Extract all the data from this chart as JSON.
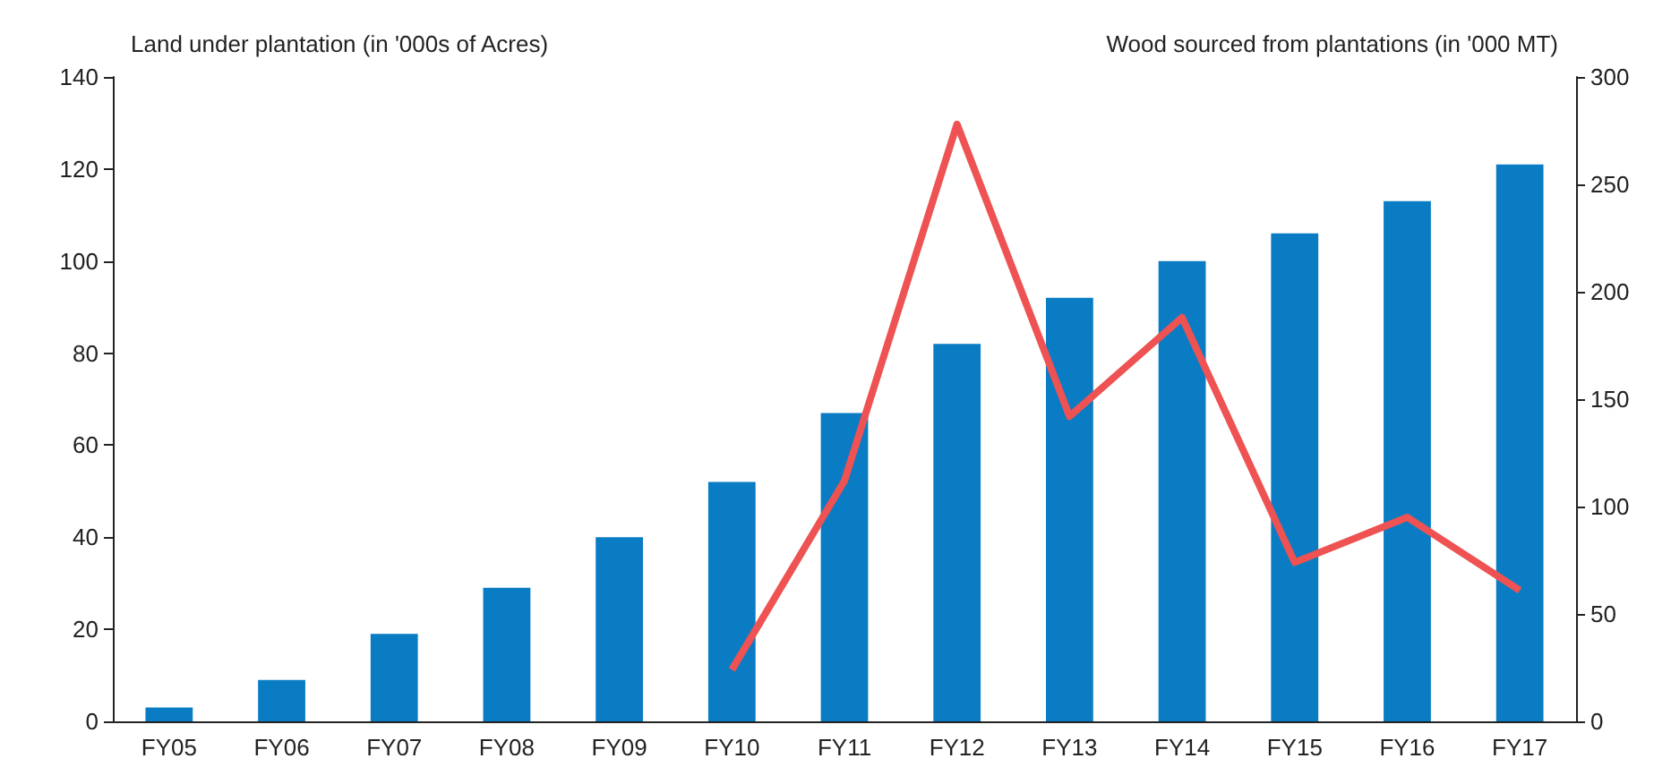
{
  "chart_data": {
    "type": "bar",
    "ylabel": "Land under plantation (in '000s of Acres)",
    "y2label": "Wood sourced from plantations (in '000 MT)",
    "categories": [
      "FY05",
      "FY06",
      "FY07",
      "FY08",
      "FY09",
      "FY10",
      "FY11",
      "FY12",
      "FY13",
      "FY14",
      "FY15",
      "FY16",
      "FY17"
    ],
    "series": [
      {
        "color": "#0a7cc4",
        "values": [
          3,
          9,
          19,
          29,
          40,
          52,
          67,
          82,
          92,
          100,
          106,
          113,
          121
        ]
      },
      {
        "type": "line",
        "axis": "y2",
        "color": "#ee5252",
        "values": [
          null,
          null,
          null,
          null,
          null,
          24,
          112,
          278,
          142,
          188,
          74,
          95,
          61
        ]
      }
    ],
    "ylim": [
      0,
      140
    ],
    "yticks": [
      0,
      20,
      40,
      60,
      80,
      100,
      120,
      140
    ],
    "y2lim": [
      0,
      300
    ],
    "y2ticks": [
      0,
      50,
      100,
      150,
      200,
      250,
      300
    ],
    "grid": false,
    "marker": "none"
  }
}
